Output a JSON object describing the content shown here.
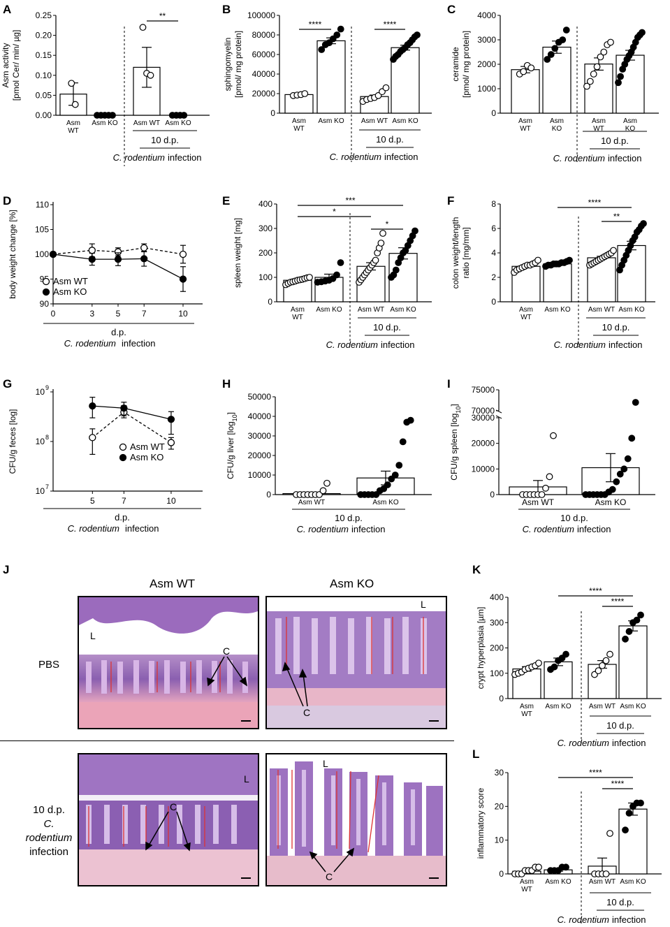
{
  "panels": {
    "A": {
      "letter": "A",
      "ylabel": "Asm activity",
      "ylabel2": "[pmol Cer/ min/ µg]",
      "yticks": [
        "0.00",
        "0.05",
        "0.10",
        "0.15",
        "0.20",
        "0.25"
      ],
      "groups": [
        [
          "Asm",
          "WT"
        ],
        [
          "Asm KO"
        ],
        [
          "Asm WT"
        ],
        [
          "Asm KO"
        ]
      ],
      "sig": [
        "**"
      ],
      "infection_time": "10 d.p.",
      "infection_organism": "C. rodentium",
      "infection_word": "infection"
    },
    "B": {
      "letter": "B",
      "ylabel": "sphingomyelin",
      "ylabel2": "[pmol/ mg protein]",
      "yticks": [
        "0",
        "20000",
        "40000",
        "60000",
        "80000",
        "100000"
      ],
      "groups": [
        [
          "Asm",
          "WT"
        ],
        [
          "Asm KO"
        ],
        [
          "Asm WT"
        ],
        [
          "Asm KO"
        ]
      ],
      "sig": [
        "****",
        "****"
      ],
      "infection_time": "10 d.p.",
      "infection_organism": "C. rodentium",
      "infection_word": "infection"
    },
    "C": {
      "letter": "C",
      "ylabel": "ceramide",
      "ylabel2": "[pmol/ mg protein]",
      "yticks": [
        "0",
        "1000",
        "2000",
        "3000",
        "4000"
      ],
      "groups": [
        [
          "Asm",
          "WT"
        ],
        [
          "Asm",
          "KO"
        ],
        [
          "Asm",
          "WT"
        ],
        [
          "Asm",
          "KO"
        ]
      ],
      "infection_time": "10 d.p.",
      "infection_organism": "C. rodentium",
      "infection_word": "infection"
    },
    "D": {
      "letter": "D",
      "ylabel": "body weight change [%]",
      "yticks": [
        "90",
        "95",
        "100",
        "105",
        "110"
      ],
      "xticks": [
        "0",
        "3",
        "5",
        "7",
        "10"
      ],
      "xlabel": "d.p.",
      "infection_organism": "C. rodentium",
      "infection_word": "infection",
      "legend": [
        "Asm WT",
        "Asm KO"
      ]
    },
    "E": {
      "letter": "E",
      "ylabel": "spleen weight [mg]",
      "yticks": [
        "0",
        "100",
        "200",
        "300",
        "400"
      ],
      "groups": [
        [
          "Asm",
          "WT"
        ],
        [
          "Asm KO"
        ],
        [
          "Asm WT"
        ],
        [
          "Asm KO"
        ]
      ],
      "sig": [
        "*",
        "***",
        "*"
      ],
      "infection_time": "10 d.p.",
      "infection_organism": "C. rodentium",
      "infection_word": "infection"
    },
    "F": {
      "letter": "F",
      "ylabel": "colon weight/length",
      "ylabel2": "ratio [mg/mm]",
      "yticks": [
        "0",
        "2",
        "4",
        "6",
        "8"
      ],
      "groups": [
        [
          "Asm",
          "WT"
        ],
        [
          "Asm KO"
        ],
        [
          "Asm WT"
        ],
        [
          "Asm KO"
        ]
      ],
      "sig": [
        "****",
        "**"
      ],
      "infection_time": "10 d.p.",
      "infection_organism": "C. rodentium",
      "infection_word": "infection"
    },
    "G": {
      "letter": "G",
      "ylabel": "CFU/g feces [log]",
      "yticks": [
        "10",
        "10",
        "10"
      ],
      "yexp": [
        "7",
        "8",
        "9"
      ],
      "xticks": [
        "5",
        "7",
        "10"
      ],
      "xlabel": "d.p.",
      "infection_organism": "C. rodentium",
      "infection_word": "infection",
      "legend": [
        "Asm WT",
        "Asm KO"
      ]
    },
    "H": {
      "letter": "H",
      "ylabel": "CFU/g liver [log",
      "ylabel_sub": "10",
      "ylabel_end": "]",
      "yticks": [
        "0",
        "10000",
        "20000",
        "30000",
        "40000",
        "50000"
      ],
      "groups": [
        [
          "Asm WT"
        ],
        [
          "Asm KO"
        ]
      ],
      "infection_time": "10 d.p.",
      "infection_organism": "C. rodentium",
      "infection_word": "infection"
    },
    "I": {
      "letter": "I",
      "ylabel": "CFU/g spleen [log",
      "ylabel_sub": "10",
      "ylabel_end": "]",
      "yticks": [
        "0",
        "10000",
        "20000",
        "30000",
        "70000",
        "75000"
      ],
      "groups": [
        [
          "Asm WT"
        ],
        [
          "Asm KO"
        ]
      ],
      "infection_time": "10 d.p.",
      "infection_organism": "C. rodentium",
      "infection_word": "infection"
    },
    "J": {
      "letter": "J",
      "col_wt": "Asm WT",
      "col_ko": "Asm KO",
      "row_pbs": "PBS",
      "row_inf": [
        "10 d.p.",
        "C. rodentium",
        "infection"
      ],
      "lumen": "L",
      "crypt": "C"
    },
    "K": {
      "letter": "K",
      "ylabel": "crypt hyperplasia [µm]",
      "yticks": [
        "0",
        "100",
        "200",
        "300",
        "400"
      ],
      "groups": [
        [
          "Asm",
          "WT"
        ],
        [
          "Asm KO"
        ],
        [
          "Asm WT"
        ],
        [
          "Asm KO"
        ]
      ],
      "sig": [
        "****",
        "****"
      ],
      "infection_time": "10 d.p.",
      "infection_organism": "C. rodentium",
      "infection_word": "infection"
    },
    "L": {
      "letter": "L",
      "ylabel": "inflammatory score",
      "yticks": [
        "0",
        "10",
        "20",
        "30"
      ],
      "groups": [
        [
          "Asm",
          "WT"
        ],
        [
          "Asm KO"
        ],
        [
          "Asm WT"
        ],
        [
          "Asm KO"
        ]
      ],
      "sig": [
        "****",
        "****"
      ],
      "infection_time": "10 d.p.",
      "infection_organism": "C. rodentium",
      "infection_word": "infection"
    }
  },
  "chart_data": [
    {
      "id": "A",
      "type": "bar",
      "categories": [
        "Asm WT",
        "Asm KO",
        "Asm WT 10 d.p.",
        "Asm KO 10 d.p."
      ],
      "values": [
        0.053,
        0.0,
        0.12,
        0.0
      ],
      "errors": [
        0.028,
        0,
        0.05,
        0
      ],
      "points": [
        [
          0.08,
          0.027
        ],
        [
          0,
          0,
          0,
          0,
          0
        ],
        [
          0.22,
          0.105,
          0.1
        ],
        [
          0,
          0,
          0,
          0
        ]
      ],
      "ylim": [
        0,
        0.25
      ],
      "open": [
        true,
        false,
        true,
        false
      ]
    },
    {
      "id": "B",
      "type": "bar",
      "categories": [
        "Asm WT",
        "Asm KO",
        "Asm WT 10 d.p.",
        "Asm KO 10 d.p."
      ],
      "values": [
        19000,
        74000,
        17000,
        67000
      ],
      "errors": [
        1000,
        3000,
        1500,
        2500
      ],
      "points": [
        [
          18000,
          18500,
          19000,
          20000
        ],
        [
          65000,
          70000,
          72000,
          76000,
          80000,
          86000
        ],
        [
          12000,
          14000,
          15000,
          16000,
          18000,
          22000,
          26000
        ],
        [
          55000,
          58000,
          60000,
          63000,
          65000,
          67000,
          70000,
          72000,
          75000,
          78000,
          80000
        ]
      ],
      "ylim": [
        0,
        100000
      ],
      "open": [
        true,
        false,
        true,
        false
      ]
    },
    {
      "id": "C",
      "type": "bar",
      "categories": [
        "Asm WT",
        "Asm KO",
        "Asm WT 10 d.p.",
        "Asm KO 10 d.p."
      ],
      "values": [
        1780,
        2700,
        2010,
        2370
      ],
      "errors": [
        130,
        250,
        250,
        200
      ],
      "points": [
        [
          1600,
          1700,
          1950,
          1850
        ],
        [
          2200,
          2400,
          2650,
          2900,
          3000,
          3400
        ],
        [
          1100,
          1300,
          1600,
          1900,
          2300,
          2500,
          2800,
          2900
        ],
        [
          1250,
          1500,
          1800,
          2000,
          2200,
          2350,
          2500,
          2700,
          2900,
          3100,
          3200,
          3300
        ]
      ],
      "ylim": [
        0,
        4000
      ],
      "open": [
        true,
        false,
        true,
        false
      ]
    },
    {
      "id": "D",
      "type": "line",
      "x": [
        0,
        3,
        5,
        7,
        10
      ],
      "series": [
        {
          "name": "Asm WT",
          "values": [
            100,
            100.8,
            100.5,
            101.3,
            100.0
          ],
          "errors": [
            0,
            1.3,
            0.8,
            0.8,
            1.8
          ]
        },
        {
          "name": "Asm KO",
          "values": [
            100,
            99.0,
            99.0,
            99.1,
            95.0
          ],
          "errors": [
            0,
            1.2,
            1.3,
            1.5,
            2.5
          ]
        }
      ],
      "ylim": [
        90,
        110
      ]
    },
    {
      "id": "E",
      "type": "bar",
      "categories": [
        "Asm WT",
        "Asm KO",
        "Asm WT 10 d.p.",
        "Asm KO 10 d.p."
      ],
      "values": [
        88,
        100,
        145,
        198
      ],
      "errors": [
        5,
        13,
        15,
        23
      ],
      "points": [
        [
          70,
          75,
          80,
          82,
          85,
          88,
          90,
          92,
          95,
          98,
          100
        ],
        [
          80,
          82,
          85,
          88,
          95,
          110,
          160
        ],
        [
          80,
          90,
          100,
          110,
          120,
          130,
          140,
          150,
          160,
          170,
          200,
          220,
          240,
          280
        ],
        [
          100,
          110,
          130,
          160,
          180,
          200,
          210,
          230,
          250,
          270,
          290
        ]
      ],
      "ylim": [
        0,
        400
      ],
      "open": [
        true,
        false,
        true,
        false
      ]
    },
    {
      "id": "F",
      "type": "bar",
      "categories": [
        "Asm WT",
        "Asm KO",
        "Asm WT 10 d.p.",
        "Asm KO 10 d.p."
      ],
      "values": [
        2.9,
        3.1,
        3.6,
        4.6
      ],
      "errors": [
        0.1,
        0.08,
        0.12,
        0.35
      ],
      "points": [
        [
          2.4,
          2.6,
          2.7,
          2.8,
          2.9,
          3.0,
          3.0,
          3.1,
          3.2,
          3.4
        ],
        [
          2.9,
          3.0,
          3.0,
          3.1,
          3.1,
          3.1,
          3.2,
          3.2,
          3.3,
          3.4
        ],
        [
          3.0,
          3.1,
          3.2,
          3.3,
          3.4,
          3.5,
          3.6,
          3.7,
          3.8,
          3.9,
          4.0,
          4.2
        ],
        [
          2.6,
          3.0,
          3.4,
          3.8,
          4.2,
          4.6,
          5.0,
          5.3,
          5.7,
          5.9,
          6.2,
          6.4
        ]
      ],
      "ylim": [
        0,
        8
      ],
      "open": [
        true,
        false,
        true,
        false
      ]
    },
    {
      "id": "G",
      "type": "line",
      "x": [
        5,
        7,
        10
      ],
      "log": true,
      "series": [
        {
          "name": "Asm WT",
          "values": [
            120000000,
            390000000,
            95000000
          ],
          "lo": [
            55000000,
            300000000,
            70000000
          ],
          "hi": [
            180000000,
            530000000,
            120000000
          ]
        },
        {
          "name": "Asm KO",
          "values": [
            520000000,
            470000000,
            280000000
          ],
          "lo": [
            300000000,
            330000000,
            140000000
          ],
          "hi": [
            780000000,
            620000000,
            400000000
          ]
        }
      ],
      "ylim": [
        10000000,
        1000000000
      ]
    },
    {
      "id": "H",
      "type": "bar",
      "categories": [
        "Asm WT",
        "Asm KO"
      ],
      "values": [
        500,
        8500
      ],
      "errors": [
        400,
        3500
      ],
      "points": [
        [
          0,
          0,
          0,
          0,
          0,
          0,
          0,
          2000,
          5800
        ],
        [
          0,
          0,
          0,
          0,
          0,
          2000,
          3000,
          5000,
          8000,
          10000,
          15000,
          27000,
          37000,
          38000
        ]
      ],
      "ylim": [
        0,
        50000
      ],
      "open": [
        true,
        false
      ]
    },
    {
      "id": "I",
      "type": "bar",
      "categories": [
        "Asm WT",
        "Asm KO"
      ],
      "values": [
        3000,
        10500
      ],
      "errors": [
        2500,
        5500
      ],
      "points": [
        [
          0,
          0,
          0,
          0,
          0,
          0,
          2500,
          7000,
          23000
        ],
        [
          0,
          0,
          0,
          0,
          0,
          0,
          1000,
          2000,
          5000,
          8000,
          10000,
          14000,
          22000,
          72000
        ]
      ],
      "ylim": [
        0,
        75000
      ],
      "open": [
        true,
        false
      ]
    },
    {
      "id": "K",
      "type": "bar",
      "categories": [
        "Asm WT",
        "Asm KO",
        "Asm WT 10 d.p.",
        "Asm KO 10 d.p."
      ],
      "values": [
        117,
        145,
        135,
        287
      ],
      "errors": [
        9,
        15,
        15,
        20
      ],
      "points": [
        [
          95,
          100,
          105,
          115,
          120,
          125,
          130,
          140
        ],
        [
          115,
          125,
          150,
          160,
          175
        ],
        [
          95,
          110,
          130,
          150,
          175
        ],
        [
          235,
          265,
          300,
          310,
          330
        ]
      ],
      "ylim": [
        0,
        400
      ],
      "open": [
        true,
        false,
        true,
        false
      ]
    },
    {
      "id": "L",
      "type": "bar",
      "categories": [
        "Asm WT",
        "Asm KO",
        "Asm WT 10 d.p.",
        "Asm KO 10 d.p."
      ],
      "values": [
        0.8,
        1.2,
        2.3,
        19.2
      ],
      "errors": [
        0.3,
        0.4,
        2.4,
        1.8
      ],
      "points": [
        [
          0,
          0,
          0,
          1,
          1,
          1,
          2,
          2
        ],
        [
          1,
          1,
          1,
          2,
          2
        ],
        [
          0,
          0,
          0,
          0,
          12
        ],
        [
          13,
          18,
          20,
          21,
          21
        ]
      ],
      "ylim": [
        0,
        30
      ],
      "open": [
        true,
        false,
        true,
        false
      ]
    }
  ]
}
